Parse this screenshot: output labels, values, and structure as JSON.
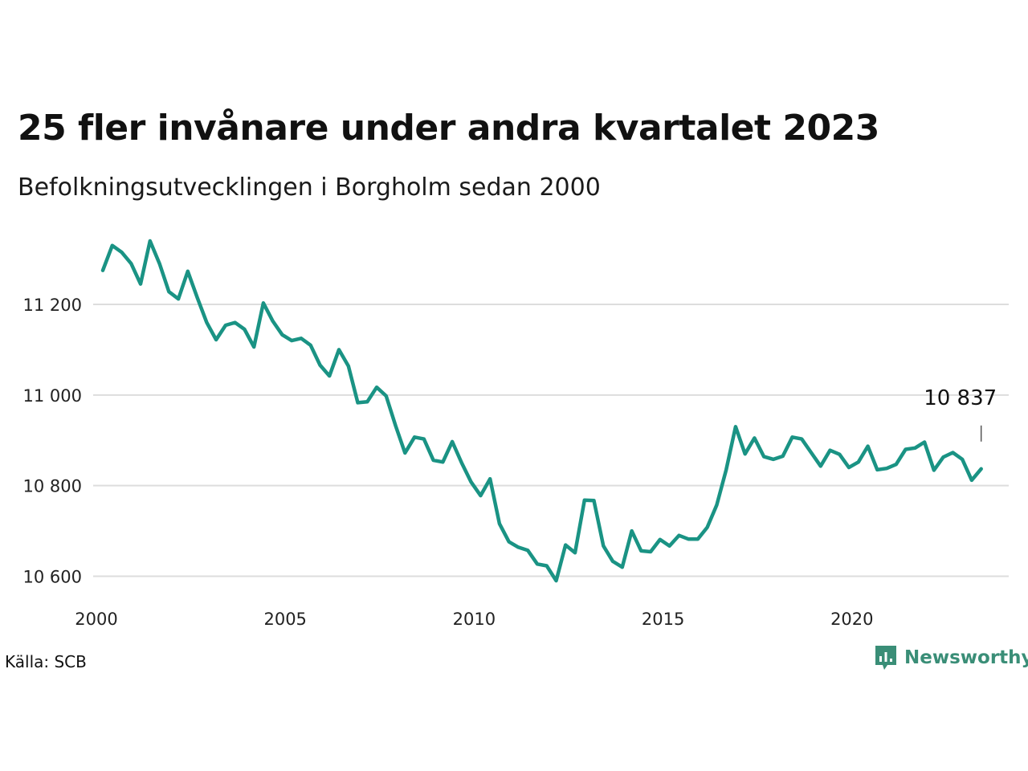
{
  "title": "25 fler invånare under andra kvartalet 2023",
  "subtitle": "Befolkningsutvecklingen i Borgholm sedan 2000",
  "source": "Källa: SCB",
  "brand": {
    "name": "Newsworthy",
    "icon": "newsworthy-logo-icon",
    "color": "#3a8e77"
  },
  "chart_data": {
    "type": "line",
    "color": "#1a9384",
    "grid_color": "#dddddd",
    "x_start": 2000.0,
    "x_step": 0.25,
    "xlim": [
      2000,
      2024.5
    ],
    "ylim": [
      10590,
      11360
    ],
    "x_ticks": [
      2000,
      2005,
      2010,
      2015,
      2020
    ],
    "x_tick_labels": [
      "2000",
      "2005",
      "2010",
      "2015",
      "2020"
    ],
    "y_ticks": [
      10600,
      10800,
      11000,
      11200
    ],
    "y_tick_labels": [
      "10 600",
      "10 800",
      "11 000",
      "11 200"
    ],
    "values": [
      11275,
      11330,
      11315,
      11290,
      11245,
      11340,
      11290,
      11228,
      11212,
      11273,
      11215,
      11160,
      11122,
      11154,
      11160,
      11145,
      11106,
      11203,
      11163,
      11133,
      11120,
      11125,
      11110,
      11066,
      11042,
      11100,
      11064,
      10983,
      10985,
      11017,
      10998,
      10932,
      10872,
      10907,
      10903,
      10856,
      10852,
      10897,
      10850,
      10808,
      10778,
      10815,
      10716,
      10676,
      10664,
      10657,
      10627,
      10623,
      10590,
      10669,
      10652,
      10768,
      10767,
      10667,
      10633,
      10620,
      10700,
      10656,
      10654,
      10681,
      10667,
      10690,
      10682,
      10682,
      10708,
      10757,
      10835,
      10930,
      10870,
      10905,
      10864,
      10858,
      10865,
      10907,
      10903,
      10873,
      10843,
      10878,
      10869,
      10840,
      10852,
      10887,
      10835,
      10838,
      10847,
      10880,
      10883,
      10896,
      10834,
      10863,
      10873,
      10858,
      10812,
      10837
    ],
    "annotation": {
      "label": "10 837",
      "x": 2023.25,
      "y": 10837
    }
  }
}
